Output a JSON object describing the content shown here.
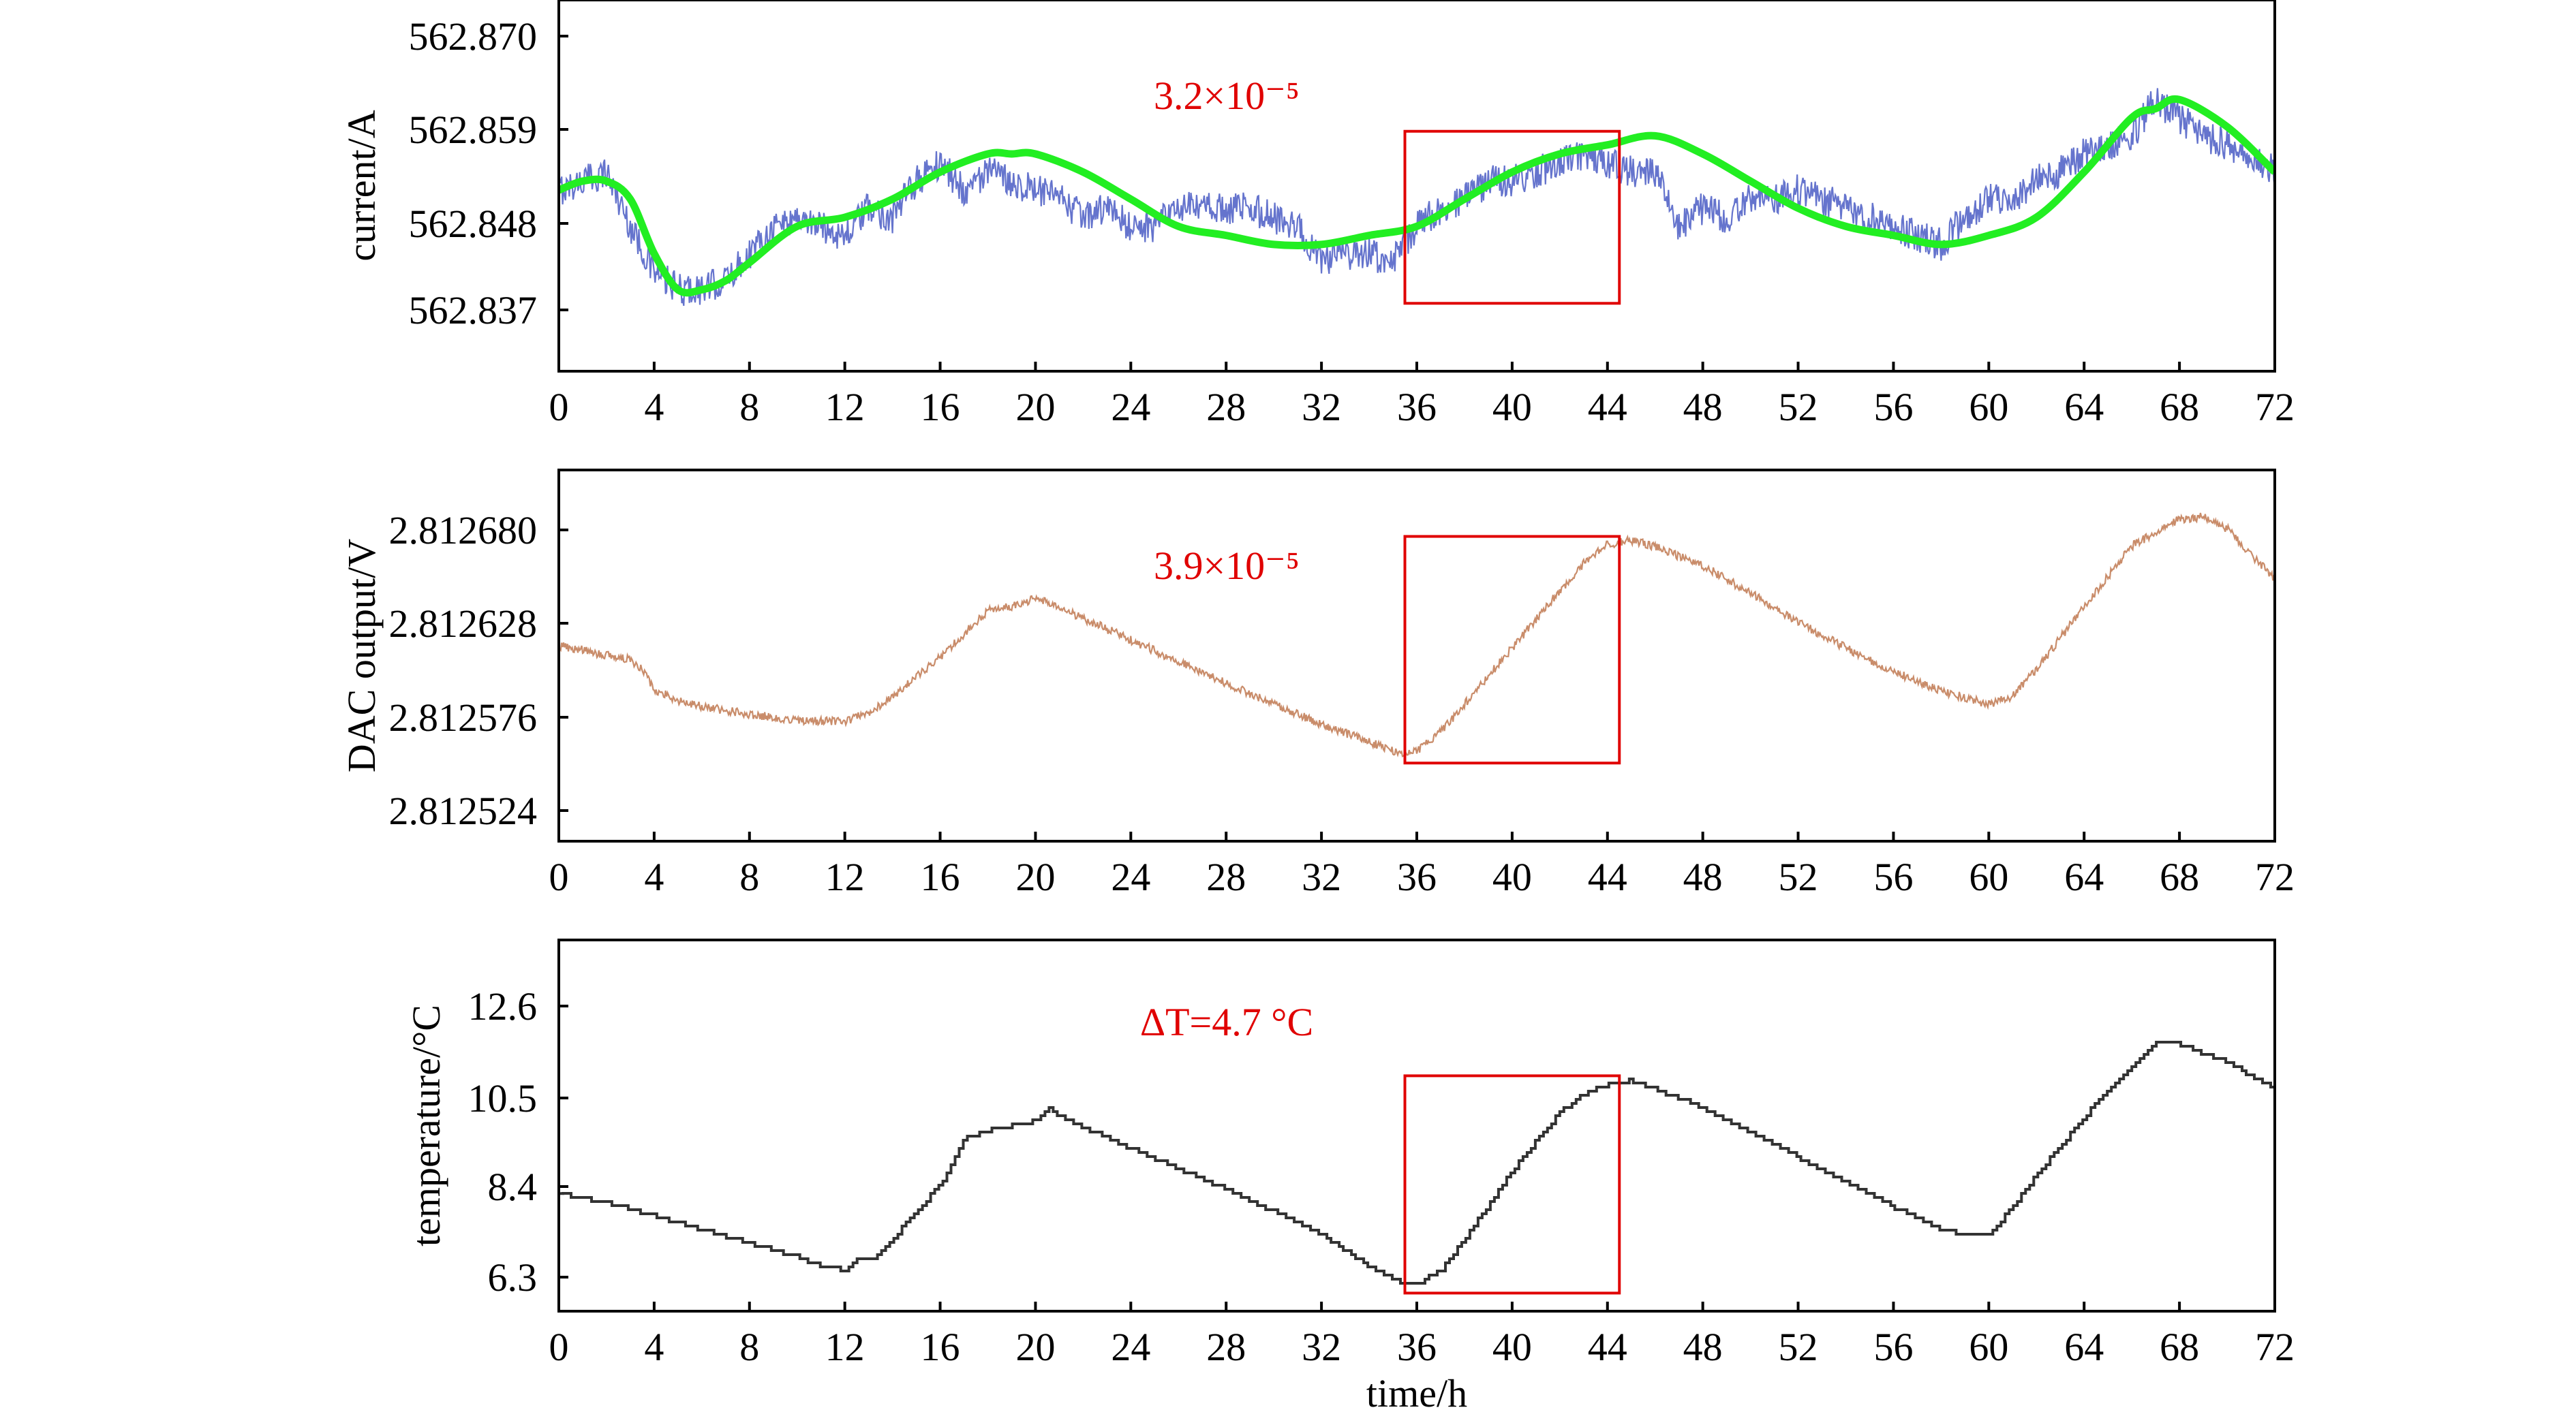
{
  "chart_data": [
    {
      "type": "line",
      "xlabel": "",
      "ylabel": "current/A",
      "xlim": [
        0,
        72
      ],
      "ylim": [
        562.83,
        562.871
      ],
      "xticks": [
        "0",
        "4",
        "8",
        "12",
        "16",
        "20",
        "24",
        "28",
        "32",
        "36",
        "40",
        "44",
        "48",
        "52",
        "56",
        "60",
        "64",
        "68",
        "72"
      ],
      "yticks": [
        "562.870",
        "562.859",
        "562.848",
        "562.837"
      ],
      "annotation": "3.2×10⁻⁵",
      "highlight": {
        "x0": 35.5,
        "x1": 44.5,
        "y0": 562.8375,
        "y1": 562.8565
      },
      "series": [
        {
          "color": "#4a5cc4",
          "style": "noisy",
          "x": [
            0,
            1,
            2,
            3,
            4,
            5,
            6,
            7,
            8,
            9,
            10,
            11,
            12,
            13,
            14,
            15,
            16,
            17,
            18,
            19,
            20,
            21,
            22,
            23,
            24,
            25,
            26,
            27,
            28,
            29,
            30,
            31,
            32,
            33,
            34,
            35,
            36,
            37,
            38,
            39,
            40,
            41,
            42,
            43,
            44,
            45,
            46,
            47,
            48,
            49,
            50,
            51,
            52,
            53,
            54,
            55,
            56,
            57,
            58,
            59,
            60,
            61,
            62,
            63,
            64,
            65,
            66,
            67,
            68,
            69,
            70,
            71,
            72
          ],
          "values": [
            562.85,
            562.851,
            562.852,
            562.846,
            562.841,
            562.839,
            562.839,
            562.84,
            562.843,
            562.846,
            562.847,
            562.846,
            562.845,
            562.848,
            562.847,
            562.851,
            562.853,
            562.85,
            562.852,
            562.851,
            562.85,
            562.849,
            562.847,
            562.848,
            562.846,
            562.846,
            562.848,
            562.848,
            562.848,
            562.848,
            562.847,
            562.846,
            562.842,
            562.843,
            562.843,
            562.842,
            562.846,
            562.848,
            562.849,
            562.851,
            562.851,
            562.852,
            562.853,
            562.854,
            562.853,
            562.852,
            562.852,
            562.846,
            562.848,
            562.847,
            562.849,
            562.849,
            562.85,
            562.849,
            562.848,
            562.847,
            562.846,
            562.845,
            562.844,
            562.847,
            562.849,
            562.849,
            562.851,
            562.852,
            562.854,
            562.855,
            562.856,
            562.86,
            562.858,
            562.856,
            562.855,
            562.854,
            562.852
          ]
        },
        {
          "color": "#22ee22",
          "style": "smooth",
          "x": [
            0,
            1,
            2,
            3,
            4,
            5,
            6,
            7,
            8,
            10,
            12,
            14,
            16,
            18,
            19,
            20,
            22,
            24,
            26,
            28,
            30,
            32,
            34,
            36,
            38,
            40,
            42,
            44,
            46,
            48,
            50,
            52,
            54,
            56,
            58,
            60,
            62,
            64,
            66,
            67,
            68,
            70,
            72
          ],
          "values": [
            562.85,
            562.851,
            562.851,
            562.849,
            562.843,
            562.839,
            562.839,
            562.84,
            562.842,
            562.846,
            562.847,
            562.849,
            562.852,
            562.854,
            562.854,
            562.854,
            562.852,
            562.849,
            562.846,
            562.845,
            562.844,
            562.844,
            562.845,
            562.846,
            562.849,
            562.852,
            562.854,
            562.855,
            562.856,
            562.854,
            562.851,
            562.848,
            562.846,
            562.845,
            562.844,
            562.845,
            562.847,
            562.852,
            562.858,
            562.859,
            562.86,
            562.857,
            562.852
          ]
        }
      ]
    },
    {
      "type": "line",
      "xlabel": "",
      "ylabel": "DAC output/V",
      "xlim": [
        0,
        72
      ],
      "ylim": [
        2.81251,
        2.8127
      ],
      "xticks": [
        "0",
        "4",
        "8",
        "12",
        "16",
        "20",
        "24",
        "28",
        "32",
        "36",
        "40",
        "44",
        "48",
        "52",
        "56",
        "60",
        "64",
        "68",
        "72"
      ],
      "yticks": [
        "2.812680",
        "2.812628",
        "2.812576",
        "2.812524"
      ],
      "annotation": "3.9×10⁻⁵",
      "highlight": {
        "x0": 35.5,
        "x1": 44.5,
        "y0": 2.81255,
        "y1": 2.812666
      },
      "series": [
        {
          "color": "#c07850",
          "style": "noisy",
          "x": [
            0,
            1,
            2,
            3,
            3.5,
            4,
            5,
            6,
            8,
            10,
            12,
            13,
            14,
            16,
            17,
            18,
            19,
            20,
            21,
            22,
            24,
            26,
            28,
            30,
            32,
            34,
            35.5,
            36,
            37,
            38,
            40,
            42,
            43,
            44,
            45,
            46,
            48,
            50,
            52,
            54,
            56,
            58,
            60,
            61,
            62,
            64,
            66,
            68,
            69,
            70,
            72
          ],
          "values": [
            2.81261,
            2.812608,
            2.812605,
            2.812603,
            2.812598,
            2.812588,
            2.812582,
            2.812579,
            2.812575,
            2.812572,
            2.812571,
            2.812576,
            2.812584,
            2.812604,
            2.812616,
            2.812628,
            2.81263,
            2.812634,
            2.81263,
            2.812624,
            2.812613,
            2.812602,
            2.812591,
            2.81258,
            2.81257,
            2.812561,
            2.812554,
            2.812556,
            2.812566,
            2.81258,
            2.812609,
            2.812638,
            2.812652,
            2.812662,
            2.812664,
            2.812661,
            2.812651,
            2.812637,
            2.812622,
            2.812609,
            2.812597,
            2.812587,
            2.81258,
            2.812584,
            2.812598,
            2.81263,
            2.812661,
            2.812675,
            2.812676,
            2.81267,
            2.812644
          ]
        }
      ]
    },
    {
      "type": "line",
      "xlabel": "time/h",
      "ylabel": "temperature/°C",
      "xlim": [
        0,
        72
      ],
      "ylim": [
        5.8,
        14.0
      ],
      "xticks": [
        "0",
        "4",
        "8",
        "12",
        "16",
        "20",
        "24",
        "28",
        "32",
        "36",
        "40",
        "44",
        "48",
        "52",
        "56",
        "60",
        "64",
        "68",
        "72"
      ],
      "yticks": [
        "12.6",
        "10.5",
        "8.4",
        "6.3"
      ],
      "annotation": "ΔT=4.7 °C",
      "highlight": {
        "x0": 35.5,
        "x1": 44.5,
        "y0": 6.2,
        "y1": 11.0
      },
      "series": [
        {
          "color": "#333333",
          "style": "step",
          "x": [
            0,
            2,
            4,
            6,
            8,
            10,
            11,
            12,
            12.5,
            13,
            14,
            16,
            17,
            18,
            19,
            20,
            20.5,
            21,
            24,
            28,
            32,
            34,
            35.5,
            36,
            37,
            38,
            40,
            42,
            43,
            44,
            45,
            48,
            52,
            56,
            58,
            59,
            60,
            61,
            62,
            64,
            66,
            67,
            68,
            69,
            70,
            72
          ],
          "values": [
            8.4,
            8.2,
            7.9,
            7.6,
            7.3,
            7.0,
            6.8,
            6.7,
            7.0,
            6.9,
            7.4,
            8.6,
            9.6,
            9.8,
            9.9,
            10.0,
            10.3,
            10.1,
            9.4,
            8.5,
            7.5,
            6.8,
            6.4,
            6.4,
            6.7,
            7.4,
            8.9,
            10.2,
            10.6,
            10.8,
            10.9,
            10.3,
            9.2,
            8.1,
            7.6,
            7.5,
            7.5,
            8.1,
            8.8,
            10.1,
            11.2,
            11.7,
            11.7,
            11.5,
            11.3,
            10.7
          ]
        }
      ]
    }
  ]
}
